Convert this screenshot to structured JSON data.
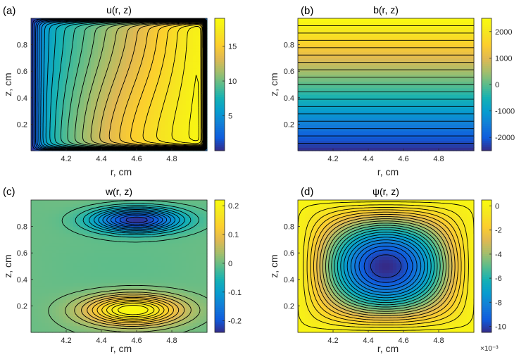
{
  "chart_data": [
    {
      "type": "heatmap",
      "panel_label": "(a)",
      "title": "u(r, z)",
      "xlabel": "r,  cm",
      "ylabel": "z,  cm",
      "x_ticks": [
        "4.2",
        "4.4",
        "4.6",
        "4.8"
      ],
      "y_ticks": [
        "0.2",
        "0.4",
        "0.6",
        "0.8"
      ],
      "xlim": [
        4.0,
        5.0
      ],
      "ylim": [
        0.0,
        1.0
      ],
      "colorbar": {
        "min": 0,
        "max": 19,
        "ticks": [
          5,
          10,
          15
        ],
        "tick_labels": [
          "5",
          "10",
          "15"
        ]
      },
      "colormap": "parula",
      "field": "u",
      "contours": 24
    },
    {
      "type": "heatmap",
      "panel_label": "(b)",
      "title": "b(r, z)",
      "xlabel": "r,  cm",
      "ylabel": "z,  cm",
      "x_ticks": [
        "4.2",
        "4.4",
        "4.6",
        "4.8"
      ],
      "y_ticks": [
        "0.2",
        "0.4",
        "0.6",
        "0.8"
      ],
      "xlim": [
        4.0,
        5.0
      ],
      "ylim": [
        0.0,
        1.0
      ],
      "colorbar": {
        "min": -2500,
        "max": 2500,
        "ticks": [
          -2000,
          -1000,
          0,
          1000,
          2000
        ],
        "tick_labels": [
          "-2000",
          "-1000",
          "0",
          "1000",
          "2000"
        ]
      },
      "colormap": "parula",
      "field": "b",
      "contours": 18
    },
    {
      "type": "heatmap",
      "panel_label": "(c)",
      "title": "w(r, z)",
      "xlabel": "r,  cm",
      "ylabel": "z,  cm",
      "x_ticks": [
        "4.2",
        "4.4",
        "4.6",
        "4.8"
      ],
      "y_ticks": [
        "0.2",
        "0.4",
        "0.6",
        "0.8"
      ],
      "xlim": [
        4.0,
        5.0
      ],
      "ylim": [
        0.0,
        1.0
      ],
      "colorbar": {
        "min": -0.24,
        "max": 0.22,
        "ticks": [
          -0.2,
          -0.1,
          0,
          0.1,
          0.2
        ],
        "tick_labels": [
          "-0.2",
          "-0.1",
          "0",
          "0.1",
          "0.2"
        ]
      },
      "colormap": "parula",
      "field": "w",
      "contours": 24
    },
    {
      "type": "heatmap",
      "panel_label": "(d)",
      "title": "ψ(r, z)",
      "xlabel": "r,  cm",
      "ylabel": "z,  cm",
      "x_ticks": [
        "4.2",
        "4.4",
        "4.6",
        "4.8"
      ],
      "y_ticks": [
        "0.2",
        "0.4",
        "0.6",
        "0.8"
      ],
      "xlim": [
        4.0,
        5.0
      ],
      "ylim": [
        0.0,
        1.0
      ],
      "colorbar": {
        "min": -10.5,
        "max": 0.5,
        "ticks": [
          -10,
          -8,
          -6,
          -4,
          -2,
          0
        ],
        "tick_labels": [
          "-10",
          "-8",
          "-6",
          "-4",
          "-2",
          "0"
        ],
        "exponent_label": "×10⁻³"
      },
      "colormap": "parula",
      "field": "psi",
      "contours": 22
    }
  ]
}
